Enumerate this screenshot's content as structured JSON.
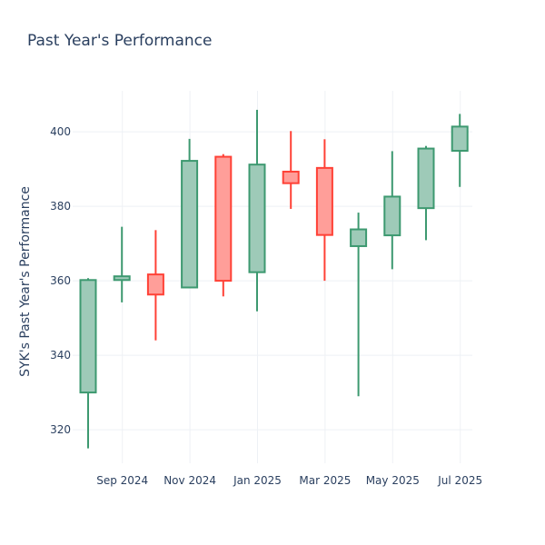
{
  "chart_data": {
    "type": "candlestick",
    "title": "Past Year's Performance",
    "xlabel": "",
    "ylabel": "SYK's Past Year's Performance",
    "ylim": [
      311,
      411
    ],
    "y_ticks": [
      320,
      340,
      360,
      380,
      400
    ],
    "x_ticks": [
      {
        "label": "Sep 2024",
        "index": 1
      },
      {
        "label": "Nov 2024",
        "index": 3
      },
      {
        "label": "Jan 2025",
        "index": 5
      },
      {
        "label": "Mar 2025",
        "index": 7
      },
      {
        "label": "May 2025",
        "index": 9
      },
      {
        "label": "Jul 2025",
        "index": 11
      }
    ],
    "categories": [
      "Aug 2024",
      "Sep 2024",
      "Oct 2024",
      "Nov 2024",
      "Dec 2024",
      "Jan 2025",
      "Feb 2025",
      "Mar 2025",
      "Apr 2025",
      "May 2025",
      "Jun 2025",
      "Jul 2025"
    ],
    "open": [
      330.0,
      360.2,
      361.7,
      358.2,
      393.3,
      362.3,
      389.3,
      390.3,
      369.3,
      372.2,
      379.5,
      394.9
    ],
    "high": [
      360.7,
      374.5,
      373.6,
      398.1,
      394.0,
      405.9,
      400.2,
      398.0,
      378.3,
      394.8,
      396.2,
      404.8
    ],
    "low": [
      315.0,
      354.2,
      344.0,
      358.0,
      355.8,
      351.8,
      379.3,
      360.0,
      329.0,
      363.1,
      370.9,
      385.2
    ],
    "close": [
      360.2,
      361.2,
      356.3,
      392.2,
      360.0,
      391.2,
      386.2,
      372.3,
      373.8,
      382.6,
      395.5,
      401.4
    ],
    "increasing_color": "#3d9970",
    "increasing_fill": "#9ecab8",
    "decreasing_color": "#ff4136",
    "decreasing_fill": "#ff9e99",
    "grid": true
  }
}
